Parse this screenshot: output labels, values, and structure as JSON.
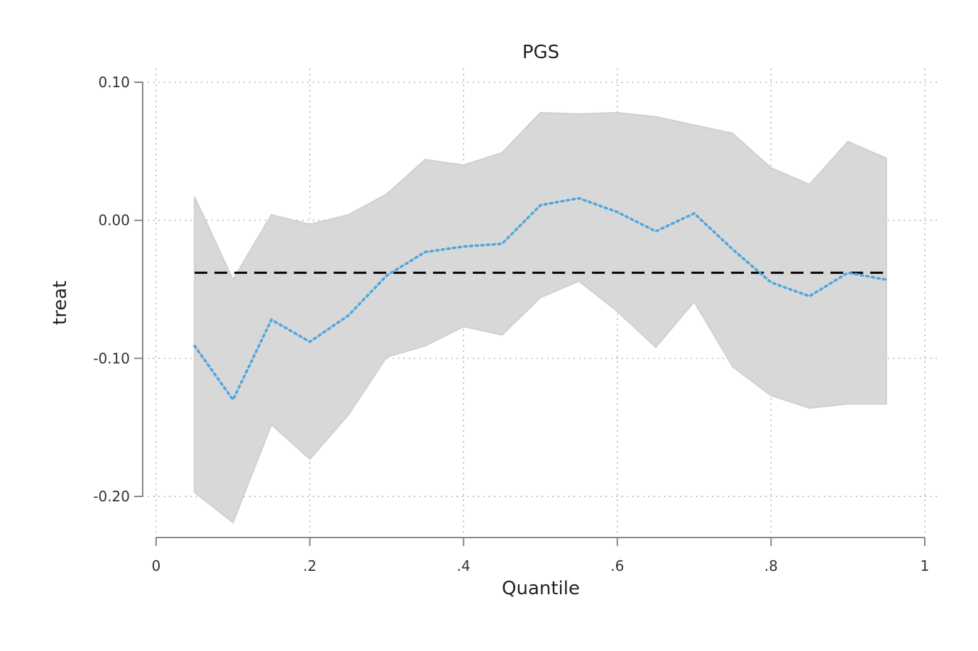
{
  "chart_data": {
    "type": "line",
    "title": "PGS",
    "xlabel": "Quantile",
    "ylabel": "treat",
    "xlim": [
      0,
      1
    ],
    "ylim": [
      -0.23,
      0.1
    ],
    "xticks": [
      0,
      0.2,
      0.4,
      0.6,
      0.8,
      1
    ],
    "xtick_labels": [
      "0",
      ".2",
      ".4",
      ".6",
      ".8",
      "1"
    ],
    "yticks": [
      0.1,
      0.0,
      -0.1,
      -0.2
    ],
    "ytick_labels": [
      "0.10",
      "0.00",
      "-0.10",
      "-0.20"
    ],
    "grid": true,
    "x": [
      0.05,
      0.1,
      0.15,
      0.2,
      0.25,
      0.3,
      0.35,
      0.4,
      0.45,
      0.5,
      0.55,
      0.6,
      0.65,
      0.7,
      0.75,
      0.8,
      0.85,
      0.9,
      0.95
    ],
    "series": [
      {
        "role": "estimate",
        "style": "dotted",
        "color": "#4da6e0",
        "values": [
          -0.091,
          -0.13,
          -0.072,
          -0.088,
          -0.069,
          -0.04,
          -0.023,
          -0.019,
          -0.017,
          0.011,
          0.016,
          0.006,
          -0.008,
          0.005,
          -0.021,
          -0.045,
          -0.055,
          -0.038,
          -0.043
        ]
      },
      {
        "role": "ci_upper",
        "color": "#d8d8d8",
        "values": [
          0.017,
          -0.043,
          0.004,
          -0.003,
          0.004,
          0.019,
          0.044,
          0.04,
          0.049,
          0.078,
          0.077,
          0.078,
          0.075,
          0.069,
          0.063,
          0.038,
          0.026,
          0.057,
          0.045
        ]
      },
      {
        "role": "ci_lower",
        "color": "#d8d8d8",
        "values": [
          -0.197,
          -0.219,
          -0.148,
          -0.173,
          -0.141,
          -0.099,
          -0.091,
          -0.077,
          -0.083,
          -0.056,
          -0.044,
          -0.066,
          -0.092,
          -0.059,
          -0.106,
          -0.127,
          -0.136,
          -0.133,
          -0.133
        ]
      },
      {
        "role": "reference",
        "style": "dashed",
        "color": "#000000",
        "x_range": [
          0.05,
          0.95
        ],
        "value": -0.038
      }
    ]
  }
}
